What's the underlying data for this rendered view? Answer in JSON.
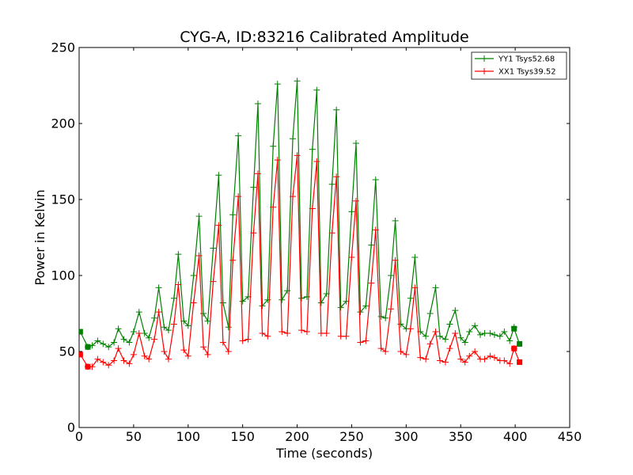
{
  "chart_data": {
    "type": "line",
    "title": "CYG-A, ID:83216 Calibrated Amplitude",
    "xlabel": "Time (seconds)",
    "ylabel": "Power in Kelvin",
    "xlim": [
      0,
      450
    ],
    "ylim": [
      0,
      250
    ],
    "xticks": [
      "0",
      "50",
      "100",
      "150",
      "200",
      "250",
      "300",
      "350",
      "400",
      "450"
    ],
    "yticks": [
      "0",
      "50",
      "100",
      "150",
      "200",
      "250"
    ],
    "grid": false,
    "legend": {
      "position": "top-right"
    },
    "series": [
      {
        "name": "YY1 Tsys52.68",
        "color": "#008000",
        "marker": "+",
        "end_markers": {
          "start": [
            [
              1,
              63
            ],
            [
              8,
              53
            ]
          ],
          "end": [
            [
              399,
              65
            ],
            [
              404,
              55
            ]
          ],
          "shape": "square"
        },
        "x": [
          8,
          12,
          17,
          22,
          27,
          32,
          36,
          41,
          46,
          50,
          55,
          60,
          64,
          69,
          73,
          78,
          82,
          87,
          91,
          96,
          100,
          105,
          110,
          114,
          118,
          123,
          128,
          132,
          137,
          141,
          146,
          150,
          155,
          160,
          164,
          168,
          173,
          178,
          182,
          186,
          191,
          196,
          200,
          204,
          209,
          214,
          218,
          222,
          227,
          232,
          236,
          240,
          245,
          250,
          254,
          258,
          263,
          268,
          272,
          277,
          281,
          286,
          290,
          295,
          300,
          304,
          308,
          313,
          318,
          322,
          327,
          331,
          336,
          340,
          345,
          350,
          354,
          358,
          363,
          368,
          372,
          377,
          381,
          386,
          390,
          395,
          399
        ],
        "y": [
          53,
          54,
          57,
          55,
          53,
          56,
          65,
          58,
          56,
          63,
          76,
          62,
          59,
          72,
          92,
          66,
          64,
          85,
          114,
          70,
          67,
          100,
          139,
          75,
          70,
          118,
          166,
          82,
          66,
          140,
          192,
          83,
          86,
          158,
          213,
          80,
          84,
          185,
          226,
          84,
          90,
          190,
          228,
          85,
          86,
          183,
          222,
          82,
          88,
          160,
          209,
          79,
          83,
          142,
          187,
          76,
          80,
          120,
          163,
          73,
          72,
          100,
          136,
          68,
          65,
          85,
          112,
          63,
          60,
          75,
          92,
          60,
          58,
          68,
          77,
          59,
          56,
          63,
          67,
          61,
          62,
          62,
          61,
          60,
          63,
          57,
          66
        ]
      },
      {
        "name": "XX1 Tsys39.52",
        "color": "#ff0000",
        "marker": "+",
        "end_markers": {
          "start": [
            [
              1,
              48
            ],
            [
              8,
              40
            ]
          ],
          "end": [
            [
              399,
              52
            ],
            [
              404,
              43
            ]
          ],
          "shape": "square"
        },
        "x": [
          8,
          12,
          17,
          22,
          27,
          32,
          36,
          41,
          46,
          50,
          55,
          60,
          64,
          69,
          73,
          78,
          82,
          87,
          91,
          96,
          100,
          105,
          110,
          114,
          118,
          123,
          128,
          132,
          137,
          141,
          146,
          150,
          155,
          160,
          164,
          168,
          173,
          178,
          182,
          186,
          191,
          196,
          200,
          204,
          209,
          214,
          218,
          222,
          227,
          232,
          236,
          240,
          245,
          250,
          254,
          258,
          263,
          268,
          272,
          277,
          281,
          286,
          290,
          295,
          300,
          304,
          308,
          313,
          318,
          322,
          327,
          331,
          336,
          340,
          345,
          350,
          354,
          358,
          363,
          368,
          372,
          377,
          381,
          386,
          390,
          395,
          399
        ],
        "y": [
          40,
          40,
          45,
          43,
          41,
          44,
          52,
          44,
          42,
          48,
          62,
          47,
          45,
          58,
          76,
          50,
          45,
          68,
          94,
          51,
          47,
          82,
          113,
          53,
          48,
          96,
          133,
          56,
          50,
          110,
          152,
          57,
          58,
          128,
          167,
          62,
          60,
          145,
          176,
          63,
          62,
          152,
          179,
          64,
          63,
          144,
          175,
          62,
          62,
          128,
          165,
          60,
          60,
          112,
          149,
          56,
          57,
          95,
          130,
          52,
          50,
          78,
          110,
          50,
          48,
          65,
          92,
          46,
          45,
          55,
          63,
          44,
          43,
          52,
          62,
          45,
          43,
          47,
          50,
          45,
          45,
          47,
          46,
          44,
          44,
          42,
          52
        ]
      }
    ]
  }
}
